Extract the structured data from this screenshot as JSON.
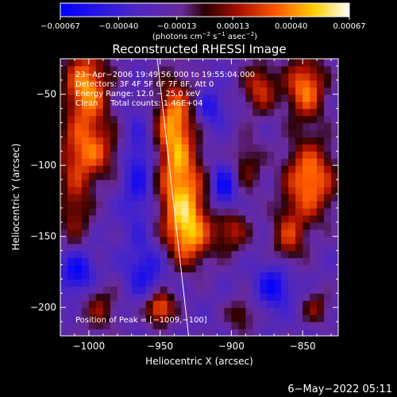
{
  "chart_data": {
    "type": "heatmap",
    "title": "Reconstructed RHESSI Image",
    "xlabel": "Heliocentric X (arcsec)",
    "ylabel": "Heliocentric Y (arcsec)",
    "xlim": [
      -1020,
      -825
    ],
    "ylim": [
      -220,
      -25
    ],
    "x_ticks": [
      -1000,
      -950,
      -900,
      -850
    ],
    "x_tick_labels": [
      "−1000",
      "−950",
      "−900",
      "−850"
    ],
    "y_ticks": [
      -50,
      -100,
      -150,
      -200
    ],
    "y_tick_labels": [
      "−50",
      "−100",
      "−150",
      "−200"
    ],
    "colorbar": {
      "min": -0.00067,
      "max": 0.00067,
      "ticks": [
        -0.00067,
        -0.0004,
        -0.00013,
        0.00013,
        0.0004,
        0.00067
      ],
      "tick_labels": [
        "−0.00067",
        "−0.00040",
        "−0.00013",
        "0.00013",
        "0.00040",
        "0.00067"
      ],
      "label_main": "(photons cm",
      "label_sup1": "−2",
      "label_mid1": " s",
      "label_sup2": "−1",
      "label_mid2": " asec",
      "label_sup3": "−2",
      "label_end": ")"
    },
    "annotations": [
      "23−Apr−2006 19:49:56.000 to 19:55:04.000",
      "Detectors: 3F 4F 5F 6F 7F 8F, Att 0",
      "Energy Range: 12.0 − 25.0 keV",
      "Clean     Total counts: 1.46E+04"
    ],
    "peak_label": "Position of Peak = [−1009,−100]",
    "peak_position": [
      -1009,
      -100
    ],
    "limb_line": [
      [
        -952,
        -25
      ],
      [
        -930,
        -220
      ]
    ],
    "image_sources": [
      {
        "x": -1002,
        "y": -45,
        "w": 16,
        "h": 28,
        "v": 0.00065
      },
      {
        "x": -1000,
        "y": -90,
        "w": 22,
        "h": 22,
        "v": 0.0005
      },
      {
        "x": -1010,
        "y": -130,
        "w": 12,
        "h": 30,
        "v": 0.00035
      },
      {
        "x": -993,
        "y": -200,
        "w": 14,
        "h": 18,
        "v": 0.0003
      },
      {
        "x": -940,
        "y": -70,
        "w": 14,
        "h": 32,
        "v": 0.00064
      },
      {
        "x": -935,
        "y": -118,
        "w": 18,
        "h": 30,
        "v": 0.0006
      },
      {
        "x": -930,
        "y": -150,
        "w": 16,
        "h": 22,
        "v": 0.00055
      },
      {
        "x": -950,
        "y": -200,
        "w": 10,
        "h": 12,
        "v": 0.00062
      },
      {
        "x": -880,
        "y": -45,
        "w": 12,
        "h": 18,
        "v": 0.00045
      },
      {
        "x": -890,
        "y": -100,
        "w": 12,
        "h": 20,
        "v": 0.0003
      },
      {
        "x": -900,
        "y": -145,
        "w": 12,
        "h": 16,
        "v": 0.0004
      },
      {
        "x": -893,
        "y": -205,
        "w": 10,
        "h": 12,
        "v": 0.0003
      },
      {
        "x": -848,
        "y": -45,
        "w": 14,
        "h": 22,
        "v": 0.0006
      },
      {
        "x": -845,
        "y": -110,
        "w": 18,
        "h": 28,
        "v": 0.00063
      },
      {
        "x": -860,
        "y": -150,
        "w": 12,
        "h": 20,
        "v": 0.0004
      },
      {
        "x": -840,
        "y": -200,
        "w": 10,
        "h": 12,
        "v": 0.0003
      },
      {
        "x": -965,
        "y": -105,
        "w": 12,
        "h": 40,
        "v": -0.00035
      },
      {
        "x": -960,
        "y": -175,
        "w": 14,
        "h": 20,
        "v": -0.0003
      },
      {
        "x": -1008,
        "y": -175,
        "w": 12,
        "h": 16,
        "v": -0.00045
      },
      {
        "x": -905,
        "y": -115,
        "w": 10,
        "h": 18,
        "v": -0.00045
      },
      {
        "x": -870,
        "y": -185,
        "w": 12,
        "h": 16,
        "v": -0.0004
      },
      {
        "x": -915,
        "y": -60,
        "w": 10,
        "h": 14,
        "v": -0.0003
      }
    ]
  },
  "footer": {
    "date": "6−May−2022 05:11"
  }
}
